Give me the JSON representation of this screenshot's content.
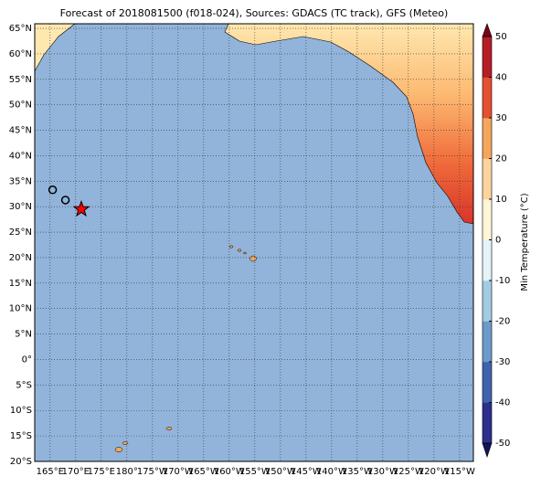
{
  "map": {
    "title": "Forecast of 2018081500 (f018-024), Sources: GDACS (TC track), GFS (Meteo)",
    "lonlim": [
      162,
      247.7
    ],
    "latlim": [
      -20,
      65.9
    ],
    "lat_ticks": [
      {
        "value": -20,
        "label": "20°S"
      },
      {
        "value": -15,
        "label": "15°S"
      },
      {
        "value": -10,
        "label": "10°S"
      },
      {
        "value": -5,
        "label": "5°S"
      },
      {
        "value": 0,
        "label": "0°"
      },
      {
        "value": 5,
        "label": "5°N"
      },
      {
        "value": 10,
        "label": "10°N"
      },
      {
        "value": 15,
        "label": "15°N"
      },
      {
        "value": 20,
        "label": "20°N"
      },
      {
        "value": 25,
        "label": "25°N"
      },
      {
        "value": 30,
        "label": "30°N"
      },
      {
        "value": 35,
        "label": "35°N"
      },
      {
        "value": 40,
        "label": "40°N"
      },
      {
        "value": 45,
        "label": "45°N"
      },
      {
        "value": 50,
        "label": "50°N"
      },
      {
        "value": 55,
        "label": "55°N"
      },
      {
        "value": 60,
        "label": "60°N"
      },
      {
        "value": 65,
        "label": "65°N"
      }
    ],
    "lon_ticks": [
      {
        "value": 165,
        "label": "165°E"
      },
      {
        "value": 170,
        "label": "170°E"
      },
      {
        "value": 175,
        "label": "175°E"
      },
      {
        "value": 180,
        "label": "180°"
      },
      {
        "value": 185,
        "label": "175°W"
      },
      {
        "value": 190,
        "label": "170°W"
      },
      {
        "value": 195,
        "label": "165°W"
      },
      {
        "value": 200,
        "label": "160°W"
      },
      {
        "value": 205,
        "label": "155°W"
      },
      {
        "value": 210,
        "label": "150°W"
      },
      {
        "value": 215,
        "label": "145°W"
      },
      {
        "value": 220,
        "label": "140°W"
      },
      {
        "value": 225,
        "label": "135°W"
      },
      {
        "value": 230,
        "label": "130°W"
      },
      {
        "value": 235,
        "label": "125°W"
      },
      {
        "value": 240,
        "label": "120°W"
      },
      {
        "value": 245,
        "label": "115°W"
      }
    ],
    "track": [
      {
        "lon": 165.5,
        "lat": 33.3
      },
      {
        "lon": 168.0,
        "lat": 31.3
      }
    ],
    "current": {
      "lon": 171.1,
      "lat": 29.5
    }
  },
  "colorbar": {
    "label": "Min Temperature (°C)",
    "ticks": [
      -50,
      -40,
      -30,
      -20,
      -10,
      0,
      10,
      20,
      30,
      40,
      50
    ],
    "colors": [
      "#2c2f8c",
      "#3f63ad",
      "#6b9acb",
      "#a3cce3",
      "#e3f3f8",
      "#fff6d8",
      "#fdd49e",
      "#f4a65d",
      "#e3512f",
      "#b61d27"
    ],
    "under_color": "#141459",
    "over_color": "#7a0019"
  }
}
